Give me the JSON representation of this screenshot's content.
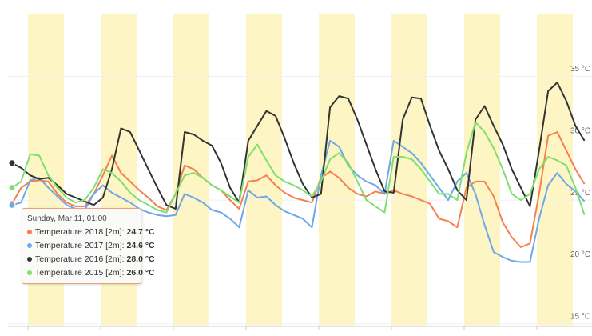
{
  "chart_data": {
    "type": "line",
    "series": [
      {
        "name": "Temperature 2018 [2m]",
        "color": "#f4804f",
        "values": [
          24.7,
          26,
          26.5,
          26.6,
          26.5,
          25.5,
          24.8,
          24.5,
          24.5,
          25.5,
          27,
          28.6,
          27.2,
          26.5,
          25.8,
          25.2,
          24.5,
          24.2,
          25.5,
          27.8,
          27.5,
          26.8,
          26.2,
          25.8,
          25,
          24.3,
          26.5,
          26.6,
          27,
          26.2,
          25.6,
          25.2,
          25,
          24.8,
          26.8,
          27.3,
          26.8,
          26,
          25.5,
          25.3,
          25.7,
          25.5,
          25.8,
          25.5,
          25.3,
          25,
          24.7,
          23.5,
          23.3,
          22.8,
          26,
          26.5,
          26.5,
          25.3,
          23.2,
          22,
          21.2,
          21.5,
          25.5,
          30.2,
          30.5,
          29,
          27.5,
          26.3
        ]
      },
      {
        "name": "Temperature 2017 [2m]",
        "color": "#6ea8e6",
        "values": [
          24.6,
          24.8,
          26.6,
          26.8,
          26,
          25.3,
          24.6,
          24.3,
          24.2,
          25.5,
          26.2,
          25.6,
          25.2,
          24.8,
          24.3,
          24,
          23.8,
          23.7,
          23.8,
          25.5,
          25.2,
          24.8,
          24.2,
          24,
          23.5,
          22.8,
          25.8,
          25.2,
          25.3,
          24.6,
          24.1,
          23.8,
          23.5,
          22.8,
          27,
          29.8,
          29.3,
          27.8,
          27,
          26.5,
          26.2,
          25.5,
          29.8,
          29.3,
          28.8,
          28,
          27,
          26,
          25,
          26.5,
          27.2,
          25.5,
          23,
          20.8,
          20.4,
          20.1,
          20,
          20,
          23.5,
          26.2,
          27.2,
          26.3,
          25.7,
          24.9
        ]
      },
      {
        "name": "Temperature 2016 [2m]",
        "color": "#333333",
        "values": [
          28.0,
          27.6,
          27,
          26.7,
          26.8,
          26.2,
          25.5,
          25.2,
          24.9,
          24.6,
          25.2,
          27.5,
          30.8,
          30.5,
          29,
          27.5,
          26,
          24.6,
          24.3,
          30.5,
          30.3,
          29.8,
          29.4,
          28,
          26,
          24.8,
          29.8,
          31,
          32.2,
          31.8,
          30,
          28,
          26.3,
          25.2,
          25.5,
          32.5,
          33.4,
          33.2,
          31.5,
          29.5,
          27.5,
          25.7,
          25.6,
          31.5,
          33.3,
          33.2,
          31,
          29,
          27.5,
          25.8,
          25,
          31.5,
          32.6,
          31,
          29.5,
          27.5,
          26,
          24.5,
          29,
          33.8,
          34.5,
          33,
          31,
          29.8
        ]
      },
      {
        "name": "Temperature 2015 [2m]",
        "color": "#7fdf6f",
        "values": [
          26.0,
          26.5,
          28.7,
          28.6,
          27,
          26,
          25.2,
          24.8,
          25,
          26,
          27.5,
          27.2,
          26.5,
          25.6,
          25,
          24.6,
          24.2,
          24,
          25.5,
          27,
          27.2,
          26.8,
          26.2,
          25.8,
          25.3,
          24.8,
          28.5,
          29.5,
          28.2,
          27,
          26.5,
          26.2,
          25.8,
          25.3,
          26.5,
          28.3,
          28.8,
          28,
          26.5,
          25,
          24.5,
          24,
          28.5,
          28.5,
          28.3,
          27.5,
          26.5,
          25.5,
          25.5,
          25,
          28.8,
          31.3,
          30.5,
          29.2,
          27.5,
          25.5,
          25,
          25.5,
          27.5,
          28.5,
          28.2,
          27.8,
          26,
          23.8
        ]
      }
    ],
    "ylim": [
      14.8,
      40
    ],
    "yticks": [
      {
        "value": 15,
        "label": "15 °C"
      },
      {
        "value": 20,
        "label": "20 °C"
      },
      {
        "value": 25,
        "label": "25 °C"
      },
      {
        "value": 30,
        "label": "30 °C"
      },
      {
        "value": 35,
        "label": "35 °C"
      }
    ],
    "grid": true,
    "tooltip": {
      "title": "Sunday, Mar 11, 01:00",
      "separator": ":",
      "items": [
        {
          "value": 24.7,
          "label": "24.7 °C"
        },
        {
          "value": 24.6,
          "label": "24.6 °C"
        },
        {
          "value": 28.0,
          "label": "28.0 °C"
        },
        {
          "value": 26.0,
          "label": "26.0 °C"
        }
      ]
    }
  }
}
